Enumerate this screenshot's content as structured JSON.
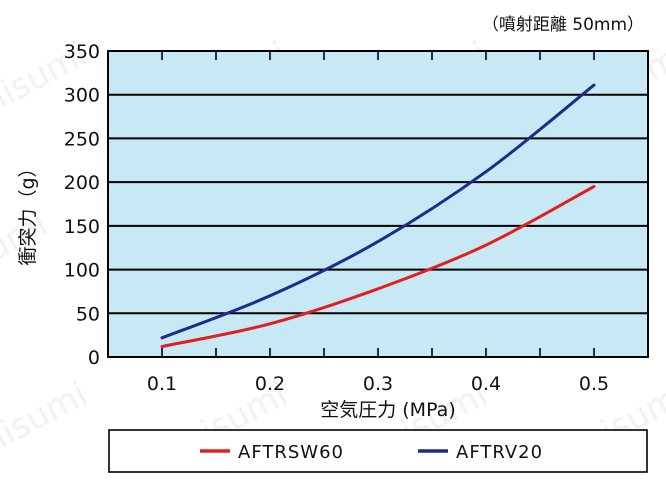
{
  "chart_data": {
    "type": "line",
    "note": "（噴射距離 50mm）",
    "xlabel": "空気圧力 (MPa)",
    "ylabel": "衝突力（g）",
    "x": [
      0.1,
      0.2,
      0.3,
      0.4,
      0.5
    ],
    "x_ticks": [
      "0.1",
      "0.2",
      "0.3",
      "0.4",
      "0.5"
    ],
    "xlim": [
      0.05,
      0.55
    ],
    "ylim": [
      0,
      350
    ],
    "y_ticks": [
      "0",
      "50",
      "100",
      "150",
      "200",
      "250",
      "300",
      "350"
    ],
    "grid": true,
    "legend_position": "bottom",
    "background_color": "#c7e8f5",
    "series": [
      {
        "name": "AFTRSW60",
        "color": "#e02020",
        "values": [
          12,
          38,
          78,
          128,
          195
        ]
      },
      {
        "name": "AFTRV20",
        "color": "#1c2b8c",
        "values": [
          22,
          70,
          132,
          212,
          311
        ]
      }
    ]
  },
  "watermark": "misumi"
}
